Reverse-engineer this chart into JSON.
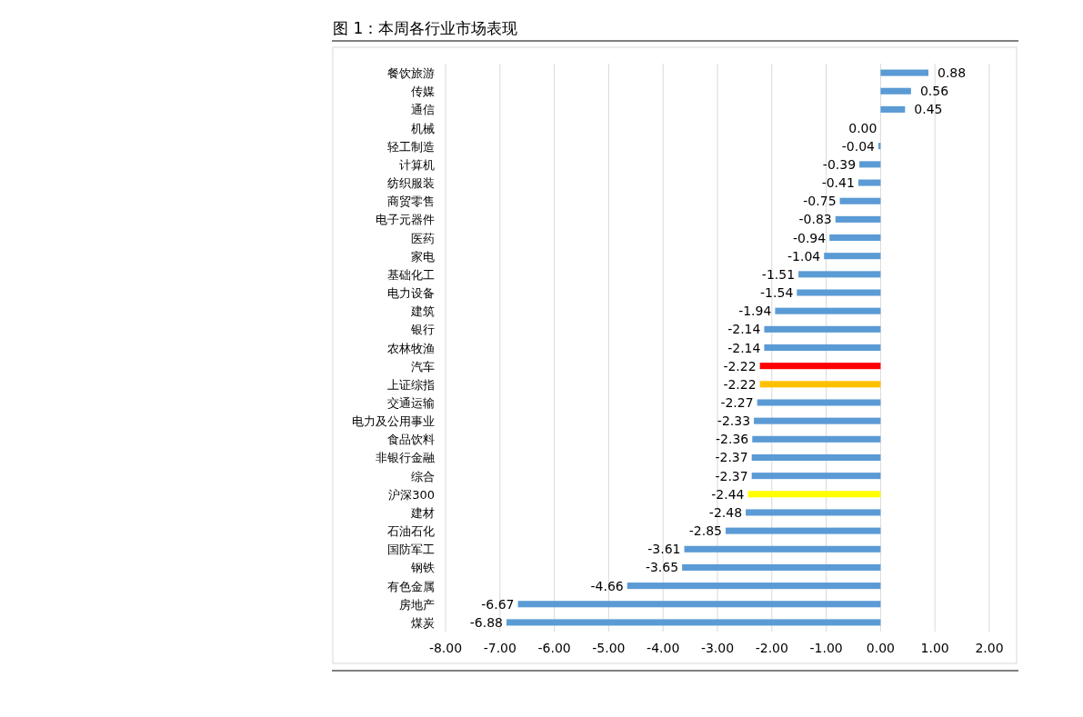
{
  "chart_data": {
    "type": "bar",
    "orientation": "horizontal",
    "title": "图 1：本周各行业市场表现",
    "categories": [
      "餐饮旅游",
      "传媒",
      "通信",
      "机械",
      "轻工制造",
      "计算机",
      "纺织服装",
      "商贸零售",
      "电子元器件",
      "医药",
      "家电",
      "基础化工",
      "电力设备",
      "建筑",
      "银行",
      "农林牧渔",
      "汽车",
      "上证综指",
      "交通运输",
      "电力及公用事业",
      "食品饮料",
      "非银行金融",
      "综合",
      "沪深300",
      "建材",
      "石油石化",
      "国防军工",
      "钢铁",
      "有色金属",
      "房地产",
      "煤炭"
    ],
    "values": [
      0.88,
      0.56,
      0.45,
      0.0,
      -0.04,
      -0.39,
      -0.41,
      -0.75,
      -0.83,
      -0.94,
      -1.04,
      -1.51,
      -1.54,
      -1.94,
      -2.14,
      -2.14,
      -2.22,
      -2.22,
      -2.27,
      -2.33,
      -2.36,
      -2.37,
      -2.37,
      -2.44,
      -2.48,
      -2.85,
      -3.61,
      -3.65,
      -4.66,
      -6.67,
      -6.88
    ],
    "colors": [
      "#5b9bd5",
      "#5b9bd5",
      "#5b9bd5",
      "#5b9bd5",
      "#5b9bd5",
      "#5b9bd5",
      "#5b9bd5",
      "#5b9bd5",
      "#5b9bd5",
      "#5b9bd5",
      "#5b9bd5",
      "#5b9bd5",
      "#5b9bd5",
      "#5b9bd5",
      "#5b9bd5",
      "#5b9bd5",
      "#ff0000",
      "#ffc000",
      "#5b9bd5",
      "#5b9bd5",
      "#5b9bd5",
      "#5b9bd5",
      "#5b9bd5",
      "#ffff00",
      "#5b9bd5",
      "#5b9bd5",
      "#5b9bd5",
      "#5b9bd5",
      "#5b9bd5",
      "#5b9bd5",
      "#5b9bd5"
    ],
    "value_labels": [
      "0.88",
      "0.56",
      "0.45",
      "0.00",
      "-0.04",
      "-0.39",
      "-0.41",
      "-0.75",
      "-0.83",
      "-0.94",
      "-1.04",
      "-1.51",
      "-1.54",
      "-1.94",
      "-2.14",
      "-2.14",
      "-2.22",
      "-2.22",
      "-2.27",
      "-2.33",
      "-2.36",
      "-2.37",
      "-2.37",
      "-2.44",
      "-2.48",
      "-2.85",
      "-3.61",
      "-3.65",
      "-4.66",
      "-6.67",
      "-6.88"
    ],
    "xlim": [
      -8,
      2
    ],
    "xticks": [
      {
        "value": -8,
        "label": "-8.00"
      },
      {
        "value": -7,
        "label": "-7.00"
      },
      {
        "value": -6,
        "label": "-6.00"
      },
      {
        "value": -5,
        "label": "-5.00"
      },
      {
        "value": -4,
        "label": "-4.00"
      },
      {
        "value": -3,
        "label": "-3.00"
      },
      {
        "value": -2,
        "label": "-2.00"
      },
      {
        "value": -1,
        "label": "-1.00"
      },
      {
        "value": 0,
        "label": "0.00"
      },
      {
        "value": 1,
        "label": "1.00"
      },
      {
        "value": 2,
        "label": "2.00"
      }
    ],
    "grid": "x"
  }
}
